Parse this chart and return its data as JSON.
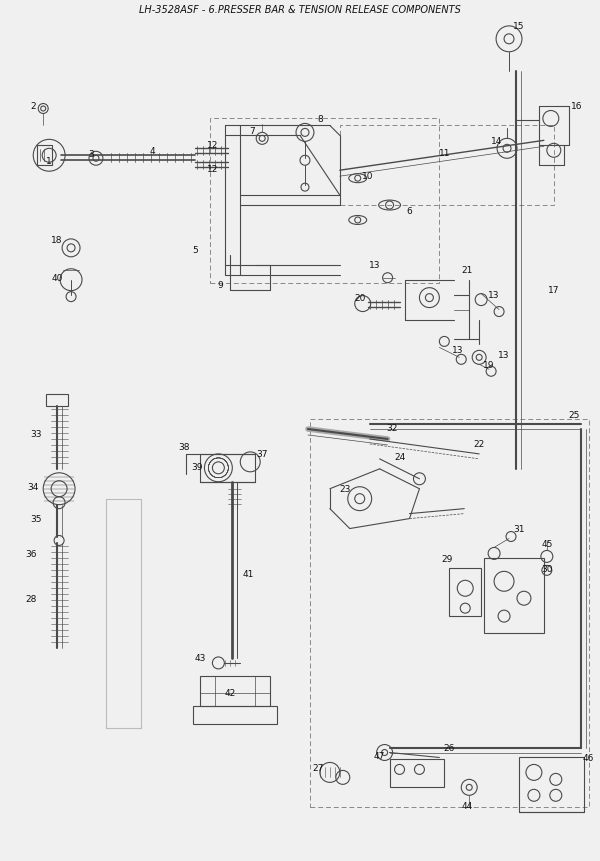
{
  "title": "LH-3528ASF - 6.PRESSER BAR & TENSION RELEASE COMPONENTS",
  "bg_color": "#f0f0f0",
  "line_color": "#4a4a4a",
  "dashed_color": "#888888",
  "label_color": "#111111",
  "fig_width": 6.0,
  "fig_height": 8.62
}
